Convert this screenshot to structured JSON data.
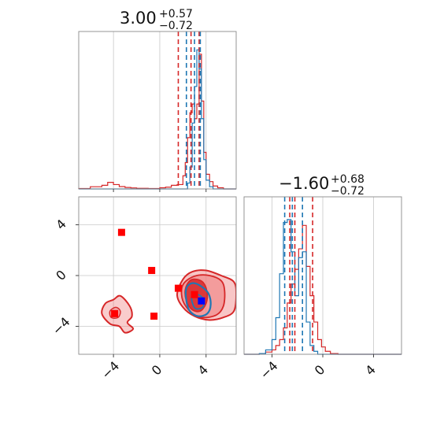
{
  "chart_data": {
    "type": "corner",
    "colors": {
      "series_red": "#d62728",
      "series_blue": "#1f77b4",
      "fill_red": "#f08080",
      "marker_red": "#ff0000",
      "marker_blue": "#0000ff"
    },
    "grid": true,
    "parameters": [
      {
        "index": 0,
        "range": [
          -7,
          6.6
        ],
        "ticks": [
          -4,
          0,
          4
        ],
        "tick_labels": [
          "−4",
          "0",
          "4"
        ],
        "title": {
          "median": "3.00",
          "plus": "+0.57",
          "minus": "−0.72"
        },
        "quantiles": {
          "red": [
            1.6,
            2.7,
            3.4
          ],
          "blue": [
            2.3,
            3.0,
            3.5
          ]
        }
      },
      {
        "index": 1,
        "range": [
          -6.2,
          6.2
        ],
        "ticks": [
          -4,
          0,
          4
        ],
        "tick_labels": [
          "−4",
          "0",
          "4"
        ],
        "title": {
          "median": "−1.60",
          "plus": "+0.68",
          "minus": "−0.72"
        },
        "quantiles": {
          "red": [
            -2.6,
            -2.2,
            -0.8
          ],
          "blue": [
            -3.0,
            -2.4,
            -1.6
          ]
        }
      }
    ],
    "histograms": {
      "p0": {
        "bin_edges": [
          -7.0,
          -6.0,
          -5.0,
          -4.5,
          -4.0,
          -3.5,
          -3.0,
          -2.5,
          -2.0,
          -1.0,
          0.0,
          0.5,
          1.0,
          1.5,
          2.0,
          2.2,
          2.4,
          2.6,
          2.8,
          3.0,
          3.2,
          3.4,
          3.6,
          3.8,
          4.0,
          4.3,
          4.6,
          5.0,
          5.5,
          6.6
        ],
        "red": [
          0.3,
          1.5,
          2.5,
          4.5,
          3.0,
          1.6,
          1.0,
          0.7,
          0.4,
          0.3,
          0.8,
          1.2,
          2.5,
          3.0,
          9,
          18,
          35,
          52,
          58,
          48,
          58,
          92,
          60,
          25,
          10,
          5,
          2,
          0.8,
          0
        ],
        "blue": [
          0,
          0,
          0,
          0,
          0,
          0,
          0,
          0,
          0,
          0,
          0,
          0,
          0,
          0,
          0,
          0,
          4,
          15,
          45,
          70,
          95,
          82,
          48,
          20,
          6,
          1.5,
          0,
          0,
          0
        ],
        "ymax": 100
      },
      "p1": {
        "bin_edges": [
          -6.2,
          -5.0,
          -4.5,
          -4.0,
          -3.7,
          -3.4,
          -3.1,
          -2.8,
          -2.5,
          -2.2,
          -1.9,
          -1.6,
          -1.3,
          -1.0,
          -0.7,
          -0.4,
          -0.1,
          0.2,
          0.6,
          1.2,
          6.2
        ],
        "red": [
          0,
          0.3,
          1.5,
          3,
          6,
          10,
          18,
          35,
          48,
          58,
          72,
          88,
          60,
          40,
          22,
          10,
          5,
          2,
          0.5,
          0
        ],
        "blue": [
          0,
          0.5,
          3,
          10,
          25,
          55,
          90,
          92,
          70,
          40,
          66,
          70,
          22,
          6,
          2,
          0,
          0,
          0,
          0,
          0
        ],
        "ymax": 100
      }
    },
    "scatter_2d": {
      "red_squares": [
        [
          -3.3,
          3.4
        ],
        [
          -0.7,
          0.4
        ],
        [
          1.6,
          -1.0
        ],
        [
          3.0,
          -1.5
        ],
        [
          -3.9,
          -3.0
        ],
        [
          -0.5,
          -3.2
        ]
      ],
      "blue_squares": [
        [
          3.6,
          -2.0
        ]
      ],
      "contours": {
        "red_outer": [
          [
            2.0,
            -0.3
          ],
          [
            2.8,
            0.3
          ],
          [
            4.0,
            0.4
          ],
          [
            5.3,
            0.0
          ],
          [
            6.4,
            -0.5
          ],
          [
            6.6,
            -1.5
          ],
          [
            6.4,
            -2.8
          ],
          [
            5.5,
            -3.3
          ],
          [
            4.3,
            -3.5
          ],
          [
            3.0,
            -3.2
          ],
          [
            2.0,
            -2.5
          ],
          [
            1.5,
            -1.5
          ]
        ],
        "red_middle": [
          [
            2.3,
            -0.4
          ],
          [
            3.2,
            0.0
          ],
          [
            4.3,
            0.0
          ],
          [
            5.3,
            -0.4
          ],
          [
            5.6,
            -1.2
          ],
          [
            5.5,
            -2.4
          ],
          [
            4.9,
            -3.1
          ],
          [
            3.7,
            -3.3
          ],
          [
            2.7,
            -2.9
          ],
          [
            2.0,
            -2.0
          ],
          [
            1.9,
            -1.0
          ]
        ],
        "red_inner": [
          [
            2.6,
            -0.4
          ],
          [
            3.2,
            -0.3
          ],
          [
            3.8,
            -0.6
          ],
          [
            4.1,
            -1.4
          ],
          [
            4.0,
            -2.2
          ],
          [
            3.5,
            -2.8
          ],
          [
            2.8,
            -2.7
          ],
          [
            2.3,
            -2.0
          ],
          [
            2.2,
            -1.1
          ]
        ],
        "red_left": [
          [
            -4.7,
            -2.2
          ],
          [
            -4.0,
            -1.9
          ],
          [
            -3.4,
            -1.6
          ],
          [
            -2.6,
            -2.4
          ],
          [
            -2.4,
            -3.2
          ],
          [
            -2.8,
            -3.7
          ],
          [
            -2.3,
            -4.2
          ],
          [
            -3.0,
            -4.5
          ],
          [
            -3.5,
            -4.0
          ],
          [
            -4.3,
            -3.8
          ],
          [
            -5.0,
            -3.0
          ]
        ],
        "red_left_inner": [
          [
            -4.3,
            -2.8
          ],
          [
            -3.8,
            -2.5
          ],
          [
            -3.4,
            -2.8
          ],
          [
            -3.6,
            -3.3
          ],
          [
            -4.2,
            -3.3
          ]
        ],
        "blue_outer": [
          [
            2.3,
            -1.0
          ],
          [
            2.8,
            -0.6
          ],
          [
            3.5,
            -0.8
          ],
          [
            4.2,
            -1.4
          ],
          [
            4.4,
            -2.3
          ],
          [
            4.1,
            -3.0
          ],
          [
            3.3,
            -3.2
          ],
          [
            2.6,
            -2.8
          ],
          [
            2.3,
            -2.0
          ]
        ],
        "blue_inner": [
          [
            2.8,
            -1.6
          ],
          [
            3.3,
            -1.5
          ],
          [
            3.8,
            -1.9
          ],
          [
            3.7,
            -2.5
          ],
          [
            3.1,
            -2.6
          ],
          [
            2.8,
            -2.1
          ]
        ]
      }
    }
  }
}
